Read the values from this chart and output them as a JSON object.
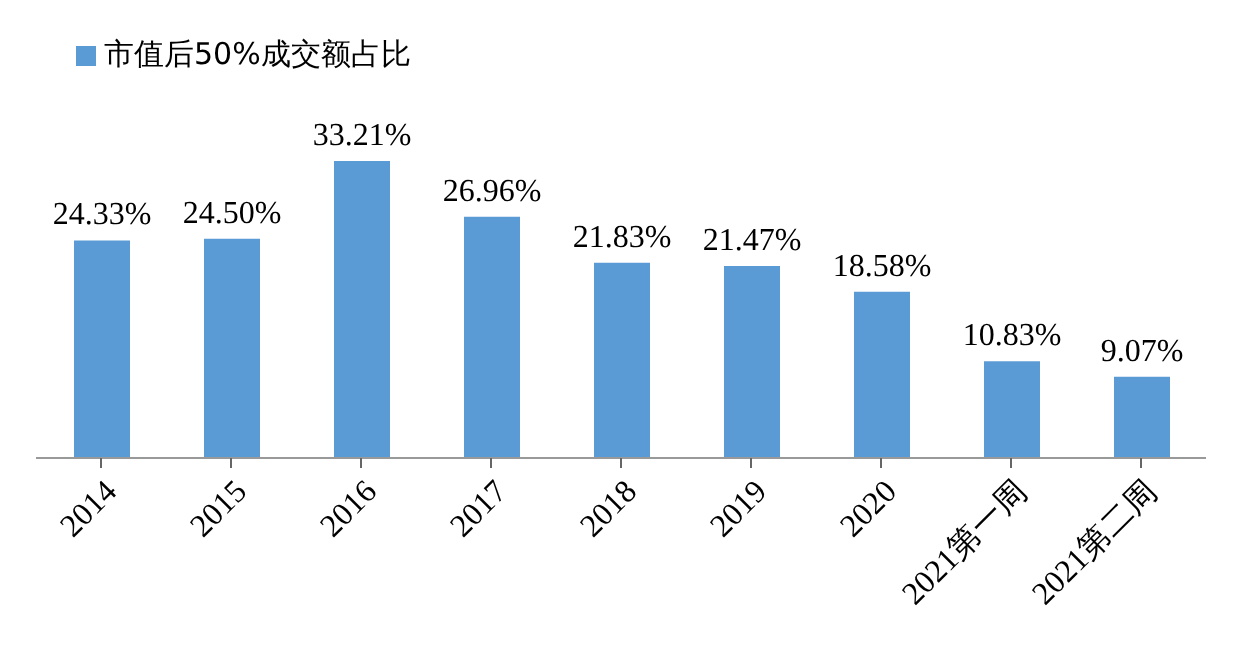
{
  "chart_data": {
    "type": "bar",
    "categories": [
      "2014",
      "2015",
      "2016",
      "2017",
      "2018",
      "2019",
      "2020",
      "2021第一周",
      "2021第二周"
    ],
    "series": [
      {
        "name": "市值后50%成交额占比",
        "color": "#5b9bd5",
        "values": [
          24.33,
          24.5,
          33.21,
          26.96,
          21.83,
          21.47,
          18.58,
          10.83,
          9.07
        ],
        "value_labels": [
          "24.33%",
          "24.50%",
          "33.21%",
          "26.96%",
          "21.83%",
          "21.47%",
          "18.58%",
          "10.83%",
          "9.07%"
        ]
      }
    ],
    "legend": "top left",
    "grid": false
  }
}
